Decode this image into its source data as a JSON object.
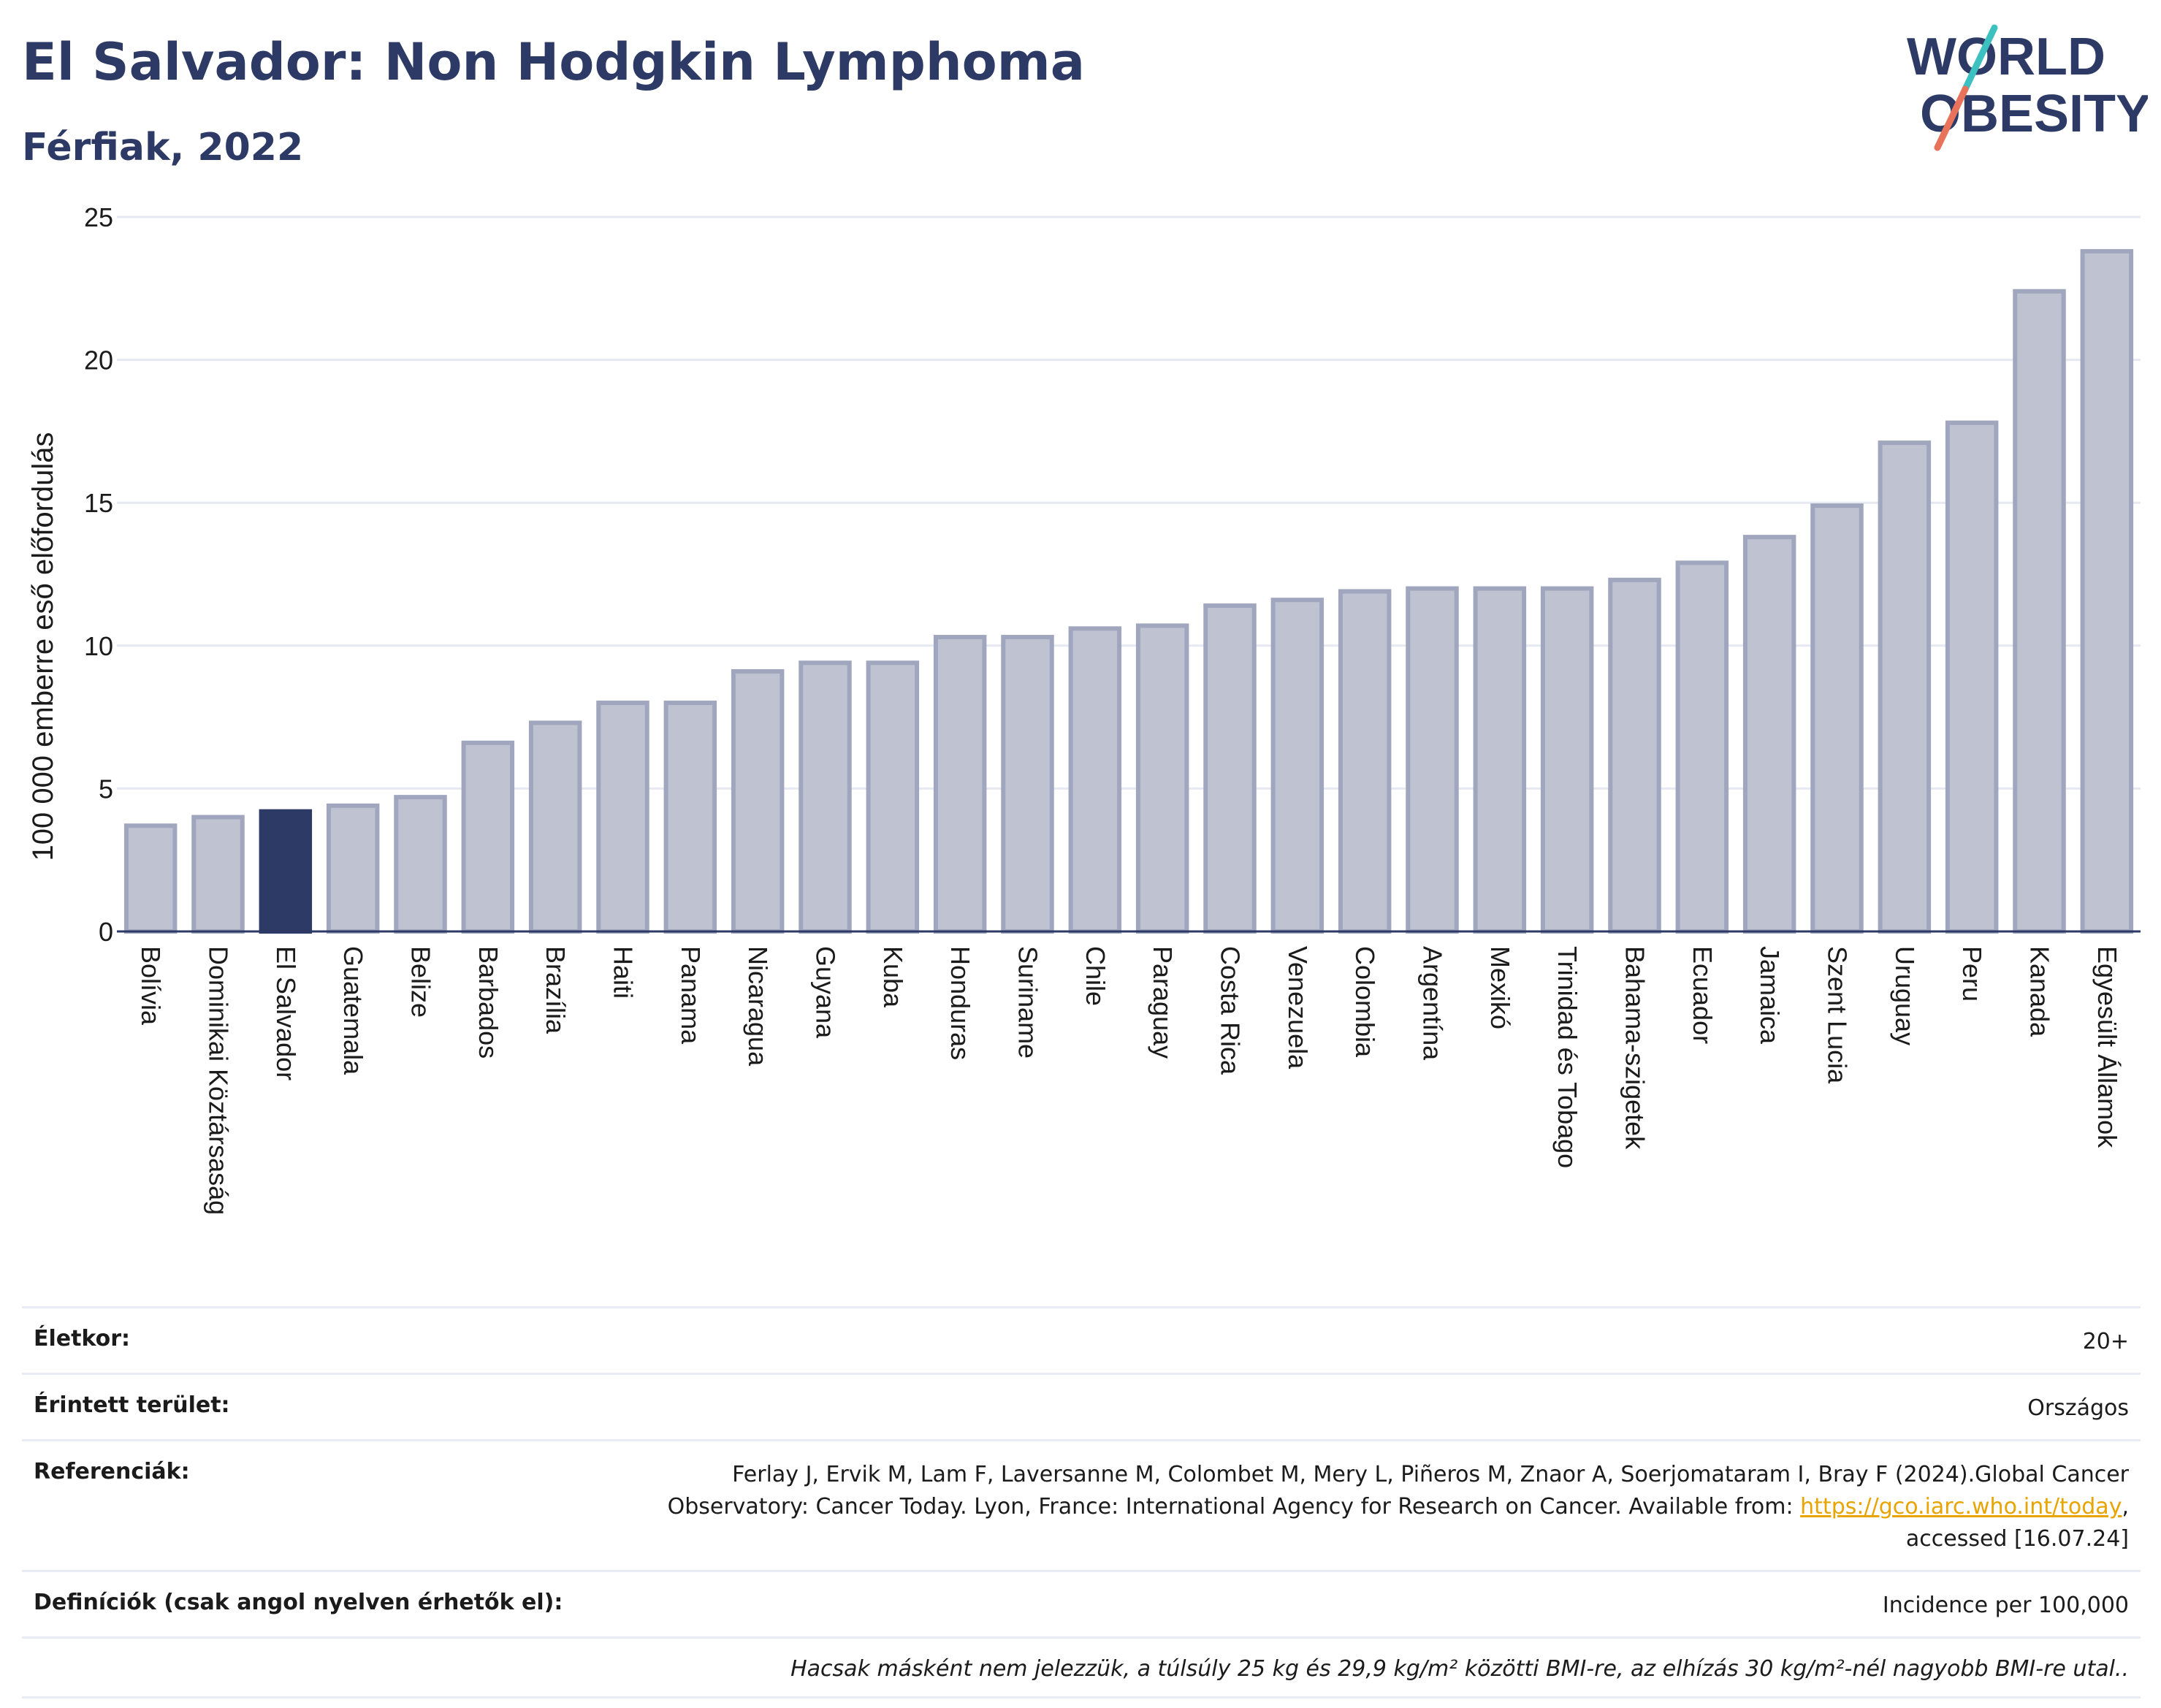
{
  "header": {
    "title": "El Salvador: Non Hodgkin Lymphoma",
    "subtitle": "Férfiak, 2022"
  },
  "logo": {
    "line1": "WORLD",
    "line2": "OBESITY",
    "colors": {
      "text": "#2d3a66",
      "slash_top": "#3cc0c0",
      "slash_bottom": "#e8735a"
    }
  },
  "colors": {
    "bar": "#bec2d1",
    "bar_border": "#a0a6bd",
    "highlight": "#2d3a66",
    "grid": "#e6e9f2",
    "axis": "#2d3a66"
  },
  "chart_data": {
    "type": "bar",
    "ylabel": "100 000 emberre eső előfordulás",
    "ylim": [
      0,
      25
    ],
    "yticks": [
      0,
      5,
      10,
      15,
      20,
      25
    ],
    "grid": true,
    "highlight": "El Salvador",
    "categories": [
      "Bolívia",
      "Dominikai Köztársaság",
      "El Salvador",
      "Guatemala",
      "Belize",
      "Barbados",
      "Brazília",
      "Haiti",
      "Panama",
      "Nicaragua",
      "Guyana",
      "Kuba",
      "Honduras",
      "Suriname",
      "Chile",
      "Paraguay",
      "Costa Rica",
      "Venezuela",
      "Colombia",
      "Argentína",
      "Mexikó",
      "Trinidad és Tobago",
      "Bahama-szigetek",
      "Ecuador",
      "Jamaica",
      "Szent Lucia",
      "Uruguay",
      "Peru",
      "Kanada",
      "Egyesült Államok"
    ],
    "values": [
      3.7,
      4.0,
      4.2,
      4.4,
      4.7,
      6.6,
      7.3,
      8.0,
      8.0,
      9.1,
      9.4,
      9.4,
      10.3,
      10.3,
      10.6,
      10.7,
      11.4,
      11.6,
      11.9,
      12.0,
      12.0,
      12.0,
      12.3,
      12.9,
      13.8,
      14.9,
      17.1,
      17.8,
      22.4,
      23.8
    ]
  },
  "meta": {
    "age_label": "Életkor:",
    "age_value": "20+",
    "area_label": "Érintett terület:",
    "area_value": "Országos",
    "ref_label": "Referenciák:",
    "ref_text_line1": "Ferlay J, Ervik M, Lam F, Laversanne M, Colombet M, Mery L, Piñeros M, Znaor A, Soerjomataram I, Bray F (2024).Global Cancer",
    "ref_text_line2_pre": "Observatory: Cancer Today. Lyon, France: International Agency for Research on Cancer. Available from: ",
    "ref_link": "https://gco.iarc.who.int/today",
    "ref_text_line2_post": ",",
    "ref_text_line3": "accessed [16.07.24]",
    "def_label": "Definíciók (csak angol nyelven érhetők el):",
    "def_value": "Incidence per 100,000",
    "note": "Hacsak másként nem jelezzük, a túlsúly 25 kg és 29,9 kg/m² közötti BMI-re, az elhízás 30 kg/m²-nél nagyobb BMI-re utal.."
  }
}
